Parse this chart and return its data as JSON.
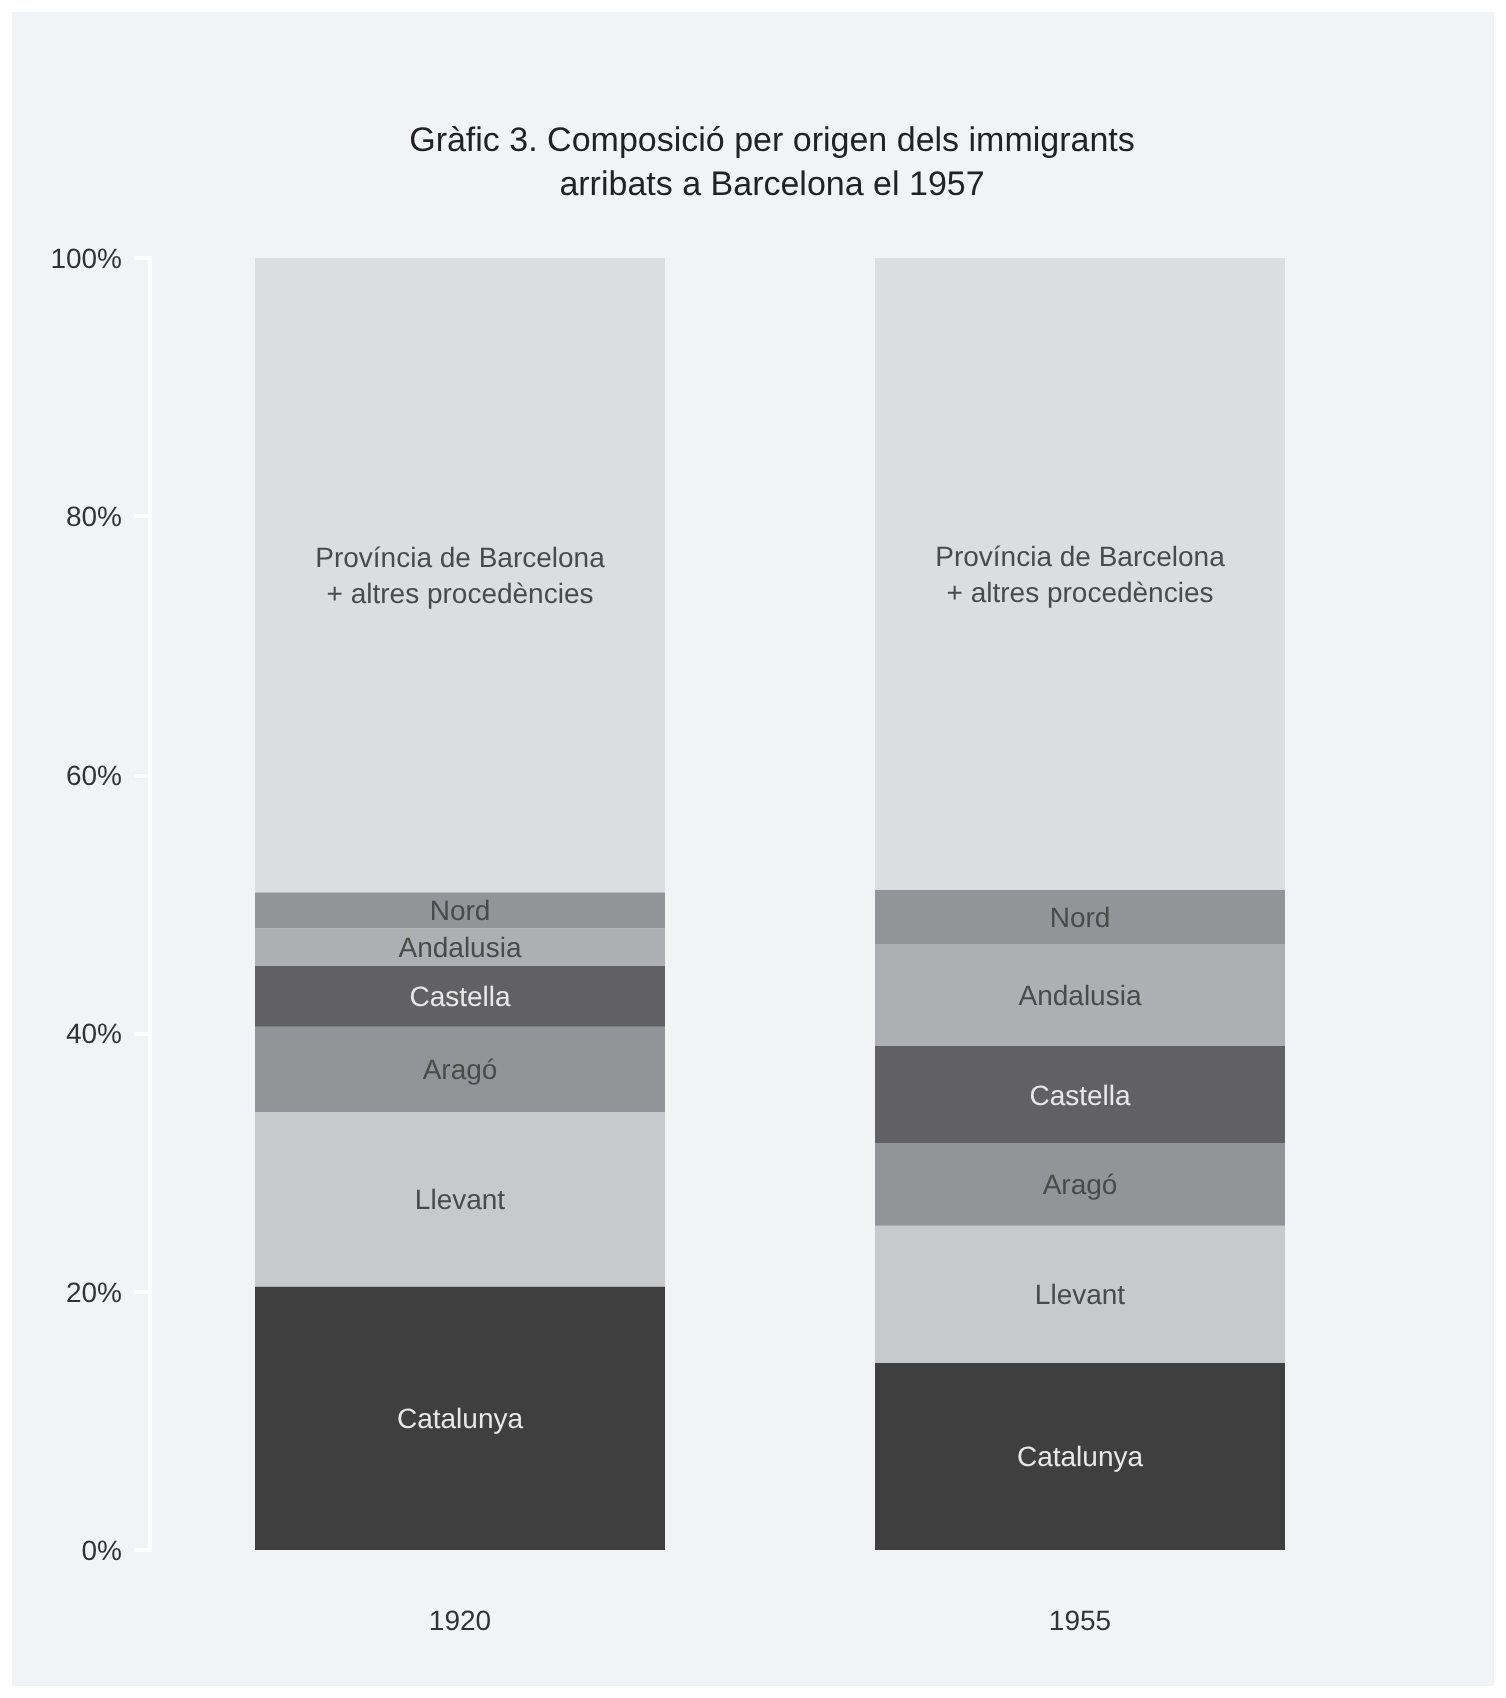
{
  "chart_data": {
    "type": "bar",
    "title": "Gràfic 3. Composició per origen dels immigrants\narribats a Barcelona el 1957",
    "categories": [
      "1920",
      "1955"
    ],
    "stacked": true,
    "legend": false,
    "grid": false,
    "ylim": [
      0,
      100
    ],
    "yticks": [
      {
        "value": 0,
        "label": "0%"
      },
      {
        "value": 20,
        "label": "20%"
      },
      {
        "value": 40,
        "label": "40%"
      },
      {
        "value": 60,
        "label": "60%"
      },
      {
        "value": 80,
        "label": "80%"
      },
      {
        "value": 100,
        "label": "100%"
      }
    ],
    "series": [
      {
        "name": "Catalunya",
        "color": "#3f3f3f",
        "values": [
          20.4,
          14.5
        ]
      },
      {
        "name": "Llevant",
        "color": "#c8c9cb",
        "values": [
          13.5,
          10.6
        ]
      },
      {
        "name": "Aragó",
        "color": "#939497",
        "values": [
          6.6,
          6.4
        ]
      },
      {
        "name": "Castella",
        "color": "#616163",
        "values": [
          4.7,
          7.5
        ]
      },
      {
        "name": "Andalusia",
        "color": "#aeafb2",
        "values": [
          2.9,
          7.9
        ]
      },
      {
        "name": "Nord",
        "color": "#939497",
        "values": [
          2.8,
          4.2
        ]
      },
      {
        "name": "Província de Barcelona\n+ altres procedències",
        "color": "#dcdddf",
        "values": [
          49.1,
          48.9
        ]
      }
    ]
  }
}
